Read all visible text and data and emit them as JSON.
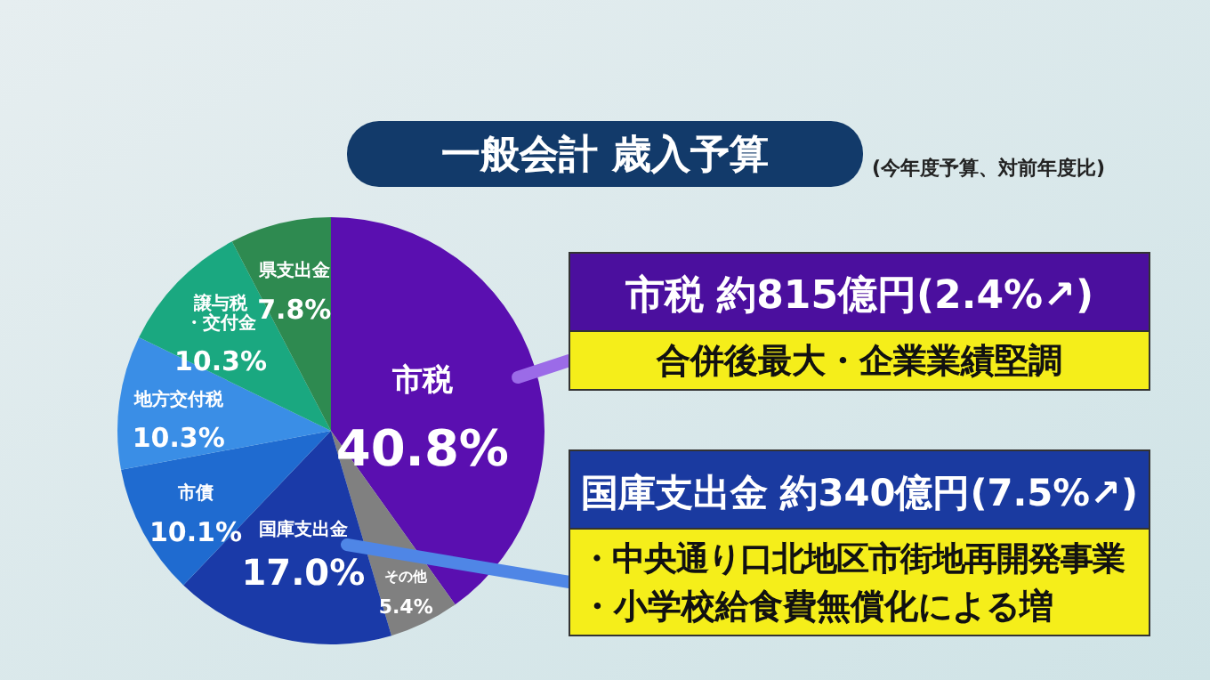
{
  "chart_data": {
    "type": "pie",
    "title": "一般会計 歳入予算",
    "subtitle": "(今年度予算、対前年度比)",
    "categories": [
      "市税",
      "その他",
      "国庫支出金",
      "市債",
      "地方交付税",
      "譲与税・交付金",
      "県支出金"
    ],
    "values": [
      40.8,
      5.4,
      17.0,
      10.1,
      10.3,
      10.3,
      7.8
    ],
    "value_labels": [
      "40.8%",
      "5.4%",
      "17.0%",
      "10.1%",
      "10.3%",
      "10.3%",
      "7.8%"
    ],
    "colors": [
      "#5a0fb0",
      "#808080",
      "#1a3aa8",
      "#1f6bd0",
      "#3a8ee6",
      "#1aa880",
      "#2e8a50"
    ],
    "annotations": [
      "市税 約815億円(2.4%↗)",
      "合併後最大・企業業績堅調",
      "国庫支出金 約340億円(7.5%↗)",
      "・中央通り口北地区市街地再開発事業",
      "・小学校給食費無償化による増"
    ]
  }
}
